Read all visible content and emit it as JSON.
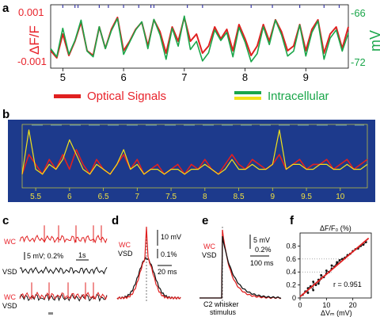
{
  "panels": {
    "a": {
      "label": "a",
      "y_left": {
        "label": "ΔF/F",
        "ticks": [
          "0.001",
          "-0.001"
        ],
        "color": "#e8232b"
      },
      "y_right": {
        "label": "mV",
        "ticks": [
          "-66",
          "-72"
        ],
        "color": "#1aa64a"
      },
      "x_ticks": [
        "5",
        "6",
        "7",
        "8",
        "9"
      ],
      "legend": [
        {
          "label": "Optical Signals",
          "color": "#e02020"
        },
        {
          "label": "Intracellular",
          "color": "#1aa64a",
          "color2": "#f2e21a"
        }
      ]
    },
    "b": {
      "label": "b",
      "x_ticks": [
        "5.5",
        "6",
        "6.5",
        "7",
        "7.5",
        "8",
        "8.5",
        "9",
        "9.5",
        "10"
      ],
      "colors": {
        "background": "#1d3a8c",
        "grid": "#cfcf3a",
        "tick_text": "#f0e040"
      }
    },
    "c": {
      "label": "c",
      "rows": [
        "WC",
        "VSD",
        "WC",
        "VSD"
      ],
      "scalebar": "5 mV; 0.2%",
      "timebar": "1s"
    },
    "d": {
      "label": "d",
      "legend": [
        "WC",
        "VSD"
      ],
      "scalebars": [
        "10 mV",
        "0.1%",
        "20 ms"
      ]
    },
    "e": {
      "label": "e",
      "legend": [
        "WC",
        "VSD"
      ],
      "scalebars": [
        "5 mV",
        "0.2%",
        "100 ms"
      ],
      "annotation": "C2 whisker\nstimulus"
    },
    "f": {
      "label": "f",
      "ylabel": "ΔF/F₀ (%)",
      "xlabel": "ΔVₘ (mV)",
      "yticks": [
        "0.8",
        "0.6",
        "0.4",
        "0.2",
        "0"
      ],
      "xticks": [
        "0",
        "10",
        "20"
      ],
      "r_text": "r = 0.951"
    }
  },
  "chart_data": [
    {
      "panel": "a",
      "type": "line",
      "xlim": [
        4.8,
        9.7
      ],
      "ylim": [
        -0.0012,
        0.0012
      ],
      "y2lim": [
        -72.5,
        -65.5
      ],
      "series": [
        {
          "name": "Optical Signals",
          "color": "#e02020",
          "x": [
            4.8,
            4.9,
            5.0,
            5.1,
            5.2,
            5.3,
            5.4,
            5.5,
            5.6,
            5.7,
            5.8,
            5.9,
            6.0,
            6.1,
            6.2,
            6.3,
            6.4,
            6.5,
            6.6,
            6.7,
            6.8,
            6.9,
            7.0,
            7.1,
            7.2,
            7.3,
            7.4,
            7.5,
            7.6,
            7.7,
            7.8,
            7.9,
            8.0,
            8.1,
            8.2,
            8.3,
            8.4,
            8.5,
            8.6,
            8.7,
            8.8,
            8.9,
            9.0,
            9.1,
            9.2,
            9.3,
            9.4,
            9.5,
            9.6,
            9.7
          ],
          "y": [
            -0.0006,
            -0.0009,
            0.0001,
            -0.0008,
            -0.0002,
            0.0006,
            -0.0006,
            -0.0008,
            0.0004,
            -0.0005,
            0.0003,
            0.0008,
            -0.0006,
            -0.0002,
            0.0003,
            0.0006,
            -0.0004,
            0.0007,
            0.0002,
            -0.0007,
            0.0004,
            -0.0002,
            0.0008,
            -0.0002,
            0.0001,
            -0.0007,
            -0.0004,
            0.0004,
            -0.0001,
            0.0003,
            -0.0006,
            0.0005,
            -0.0001,
            -0.0008,
            -0.0004,
            0.0005,
            -0.0002,
            0.0007,
            0.0002,
            -0.0006,
            -0.0004,
            0.0005,
            -0.0006,
            0.0003,
            0.0007,
            -0.0007,
            0.0001,
            0.0004,
            -0.0005,
            0.0004
          ]
        },
        {
          "name": "Intracellular",
          "color": "#1aa64a",
          "axis": "right",
          "x": [
            4.8,
            4.9,
            5.0,
            5.1,
            5.2,
            5.3,
            5.4,
            5.5,
            5.6,
            5.7,
            5.8,
            5.9,
            6.0,
            6.1,
            6.2,
            6.3,
            6.4,
            6.5,
            6.6,
            6.7,
            6.8,
            6.9,
            7.0,
            7.1,
            7.2,
            7.3,
            7.4,
            7.5,
            7.6,
            7.7,
            7.8,
            7.9,
            8.0,
            8.1,
            8.2,
            8.3,
            8.4,
            8.5,
            8.6,
            8.7,
            8.8,
            8.9,
            9.0,
            9.1,
            9.2,
            9.3,
            9.4,
            9.5,
            9.6,
            9.7
          ],
          "y": [
            -70.5,
            -71.5,
            -68.0,
            -71.2,
            -69.5,
            -67.0,
            -70.8,
            -71.5,
            -67.8,
            -70.5,
            -68.3,
            -66.8,
            -71.2,
            -69.7,
            -68.2,
            -67.2,
            -70.5,
            -66.9,
            -68.8,
            -71.8,
            -68.0,
            -70.2,
            -66.5,
            -70.6,
            -69.6,
            -72.0,
            -71.0,
            -68.2,
            -69.5,
            -68.5,
            -71.5,
            -67.9,
            -69.7,
            -72.1,
            -71.1,
            -67.8,
            -70.0,
            -67.0,
            -68.8,
            -71.4,
            -70.8,
            -67.6,
            -71.4,
            -68.5,
            -67.1,
            -71.8,
            -69.2,
            -68.2,
            -70.8,
            -68.6
          ]
        }
      ]
    },
    {
      "panel": "b",
      "type": "line",
      "xlim": [
        5.3,
        10.4
      ],
      "series": [
        {
          "color": "#e02020",
          "x": [
            5.3,
            5.4,
            5.5,
            5.6,
            5.7,
            5.8,
            5.9,
            6.0,
            6.1,
            6.2,
            6.3,
            6.4,
            6.5,
            6.6,
            6.7,
            6.8,
            6.9,
            7.0,
            7.1,
            7.2,
            7.3,
            7.4,
            7.5,
            7.6,
            7.7,
            7.8,
            7.9,
            8.0,
            8.1,
            8.2,
            8.3,
            8.4,
            8.5,
            8.6,
            8.7,
            8.8,
            8.9,
            9.0,
            9.1,
            9.2,
            9.3,
            9.4,
            9.5,
            9.6,
            9.7,
            9.8,
            9.9,
            10.0,
            10.1,
            10.2,
            10.3,
            10.4
          ],
          "y": [
            0.1,
            0.5,
            0.3,
            0.1,
            0.4,
            0.2,
            0.5,
            0.2,
            0.6,
            0.3,
            0.1,
            0.4,
            0.2,
            0.1,
            0.3,
            0.5,
            0.2,
            0.4,
            0.1,
            0.2,
            0.3,
            0.1,
            0.2,
            0.3,
            0.1,
            0.3,
            0.2,
            0.4,
            0.2,
            0.1,
            0.3,
            0.5,
            0.3,
            0.2,
            0.4,
            0.3,
            0.2,
            0.3,
            0.5,
            0.2,
            0.3,
            0.4,
            0.2,
            0.3,
            0.3,
            0.4,
            0.2,
            0.3,
            0.4,
            0.2,
            0.3,
            0.4
          ]
        },
        {
          "color": "#f2e21a",
          "x": [
            5.3,
            5.4,
            5.5,
            5.6,
            5.7,
            5.8,
            5.9,
            6.0,
            6.1,
            6.2,
            6.3,
            6.4,
            6.5,
            6.6,
            6.7,
            6.8,
            6.9,
            7.0,
            7.1,
            7.2,
            7.3,
            7.4,
            7.5,
            7.6,
            7.7,
            7.8,
            7.9,
            8.0,
            8.1,
            8.2,
            8.3,
            8.4,
            8.5,
            8.6,
            8.7,
            8.8,
            8.9,
            9.0,
            9.1,
            9.2,
            9.3,
            9.4,
            9.5,
            9.6,
            9.7,
            9.8,
            9.9,
            10.0,
            10.1,
            10.2,
            10.3,
            10.4
          ],
          "y": [
            0.1,
            1.0,
            0.2,
            0.1,
            0.3,
            0.2,
            0.4,
            0.8,
            0.5,
            0.2,
            0.1,
            0.3,
            0.2,
            0.1,
            0.3,
            0.6,
            0.2,
            0.3,
            0.1,
            0.2,
            0.2,
            0.1,
            0.2,
            0.2,
            0.1,
            0.2,
            0.2,
            0.3,
            0.2,
            0.1,
            0.2,
            0.4,
            0.2,
            0.2,
            0.3,
            0.2,
            0.2,
            0.3,
            1.0,
            0.2,
            0.3,
            0.3,
            0.2,
            0.2,
            0.3,
            0.3,
            0.2,
            0.2,
            0.3,
            0.2,
            0.2,
            0.3
          ]
        }
      ]
    },
    {
      "panel": "f",
      "type": "scatter",
      "xlim": [
        0,
        27
      ],
      "ylim": [
        0,
        1.0
      ],
      "series": [
        {
          "color": "#000000",
          "x": [
            1,
            2,
            3,
            3,
            4,
            5,
            5,
            6,
            7,
            7,
            8,
            8,
            9,
            10,
            10,
            11,
            12,
            12,
            13,
            14,
            14,
            15,
            16,
            17,
            18,
            19,
            20,
            21,
            22,
            23,
            24,
            25
          ],
          "y": [
            0.05,
            0.1,
            0.08,
            0.15,
            0.18,
            0.12,
            0.25,
            0.2,
            0.28,
            0.22,
            0.3,
            0.35,
            0.32,
            0.38,
            0.42,
            0.4,
            0.45,
            0.5,
            0.48,
            0.55,
            0.52,
            0.58,
            0.6,
            0.62,
            0.66,
            0.68,
            0.72,
            0.75,
            0.76,
            0.8,
            0.82,
            0.86
          ]
        }
      ],
      "fit": {
        "color": "#e02020",
        "x": [
          0,
          26
        ],
        "y": [
          0.02,
          0.92
        ]
      }
    }
  ]
}
